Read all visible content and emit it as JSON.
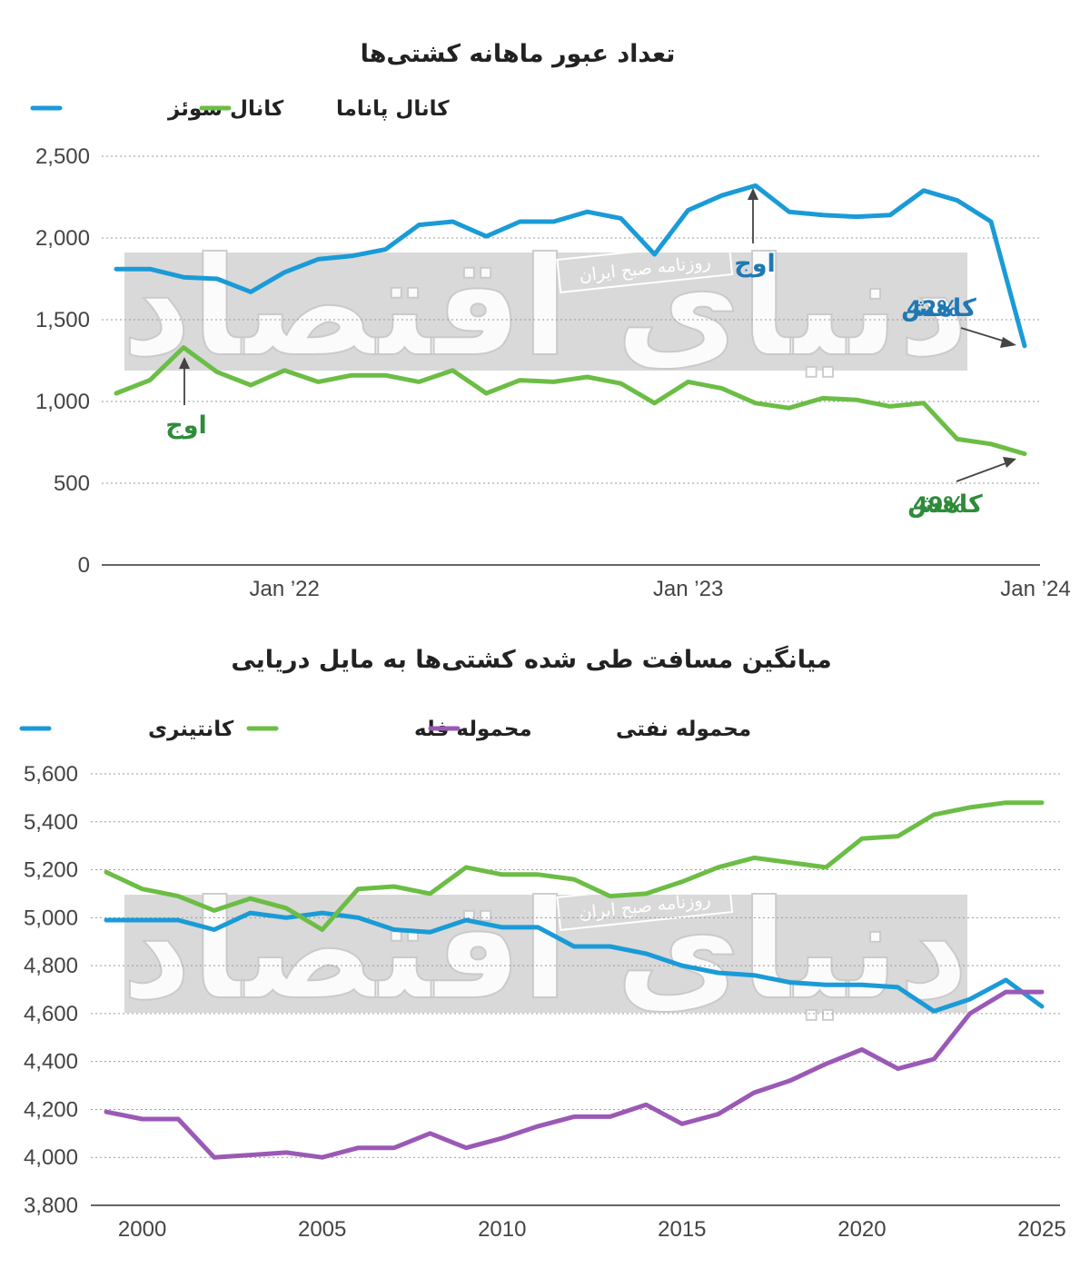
{
  "chart_data": [
    {
      "type": "line",
      "title": "تعداد عبور ماهانه کشتی‌ها",
      "x_tick_labels": [
        "Jan ’22",
        "Jan ’23",
        "Jan ’24"
      ],
      "y_ticks": [
        "0",
        "500",
        "1,000",
        "1,500",
        "2,000",
        "2,500"
      ],
      "ylim": [
        0,
        2500
      ],
      "grid": true,
      "legend_position": "top-left",
      "series": [
        {
          "name": "کانال سوئز",
          "color": "#1a9bd7",
          "values": [
            1810,
            1810,
            1760,
            1750,
            1670,
            1790,
            1870,
            1890,
            1930,
            2080,
            2100,
            2010,
            2100,
            2100,
            2160,
            2120,
            1900,
            2170,
            2260,
            2320,
            2160,
            2140,
            2130,
            2140,
            2290,
            2230,
            2100,
            1340
          ]
        },
        {
          "name": "کانال پاناما",
          "color": "#6cbd45",
          "values": [
            1050,
            1130,
            1330,
            1180,
            1100,
            1190,
            1120,
            1160,
            1160,
            1120,
            1190,
            1050,
            1130,
            1120,
            1150,
            1110,
            990,
            1120,
            1080,
            990,
            960,
            1020,
            1010,
            970,
            990,
            770,
            740,
            680
          ]
        }
      ],
      "annotations": {
        "suez_peak": "اوج",
        "suez_drop_pct": "42%",
        "suez_drop_word": "کاهش",
        "panama_peak": "اوج",
        "panama_drop_pct": "49%",
        "panama_drop_word": "کاهش"
      }
    },
    {
      "type": "line",
      "title": "میانگین مسافت طی شده کشتی‌ها به مایل دریایی",
      "x": [
        1999,
        2000,
        2001,
        2002,
        2003,
        2004,
        2005,
        2006,
        2007,
        2008,
        2009,
        2010,
        2011,
        2012,
        2013,
        2014,
        2015,
        2016,
        2017,
        2018,
        2019,
        2020,
        2021,
        2022,
        2023,
        2024,
        2025
      ],
      "x_tick_labels": [
        "2000",
        "2005",
        "2010",
        "2015",
        "2020",
        "2025"
      ],
      "y_ticks": [
        "3,800",
        "4,000",
        "4,200",
        "4,400",
        "4,600",
        "4,800",
        "5,000",
        "5,200",
        "5,400",
        "5,600"
      ],
      "ylim": [
        3800,
        5600
      ],
      "grid": true,
      "legend_position": "top",
      "series": [
        {
          "name": "کانتینری",
          "color": "#1a9bd7",
          "values": [
            4990,
            4990,
            4990,
            4950,
            5020,
            5000,
            5020,
            5000,
            4950,
            4940,
            4990,
            4960,
            4960,
            4880,
            4880,
            4850,
            4800,
            4770,
            4760,
            4730,
            4720,
            4720,
            4710,
            4610,
            4660,
            4740,
            4630
          ]
        },
        {
          "name": "محموله فله",
          "color": "#6cbd45",
          "values": [
            5190,
            5120,
            5090,
            5030,
            5080,
            5040,
            4950,
            5120,
            5130,
            5100,
            5210,
            5180,
            5180,
            5160,
            5090,
            5100,
            5150,
            5210,
            5250,
            5230,
            5210,
            5330,
            5340,
            5430,
            5460,
            5480,
            5480
          ]
        },
        {
          "name": "محموله نفتی",
          "color": "#9b59b6",
          "values": [
            4190,
            4160,
            4160,
            4000,
            4010,
            4020,
            4000,
            4040,
            4040,
            4100,
            4040,
            4080,
            4130,
            4170,
            4170,
            4220,
            4140,
            4180,
            4270,
            4320,
            4390,
            4450,
            4370,
            4410,
            4600,
            4690,
            4690
          ]
        }
      ]
    }
  ],
  "watermark": {
    "logo_text": "دنیای اقتصاد",
    "tag": "روزنامه صبح ایران"
  },
  "colors": {
    "suez": "#1a9bd7",
    "panama": "#6cbd45",
    "tanker": "#9b59b6",
    "annotation_blue": "#1f78b4",
    "annotation_green": "#2e8b3a"
  }
}
